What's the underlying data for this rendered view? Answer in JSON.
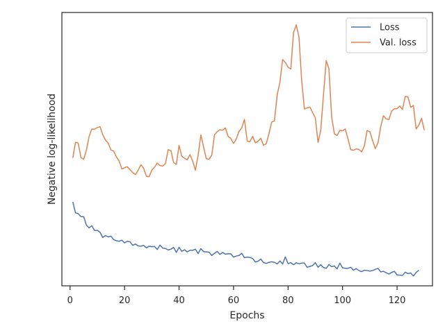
{
  "chart_data": {
    "type": "line",
    "title": "",
    "xlabel": "Epochs",
    "ylabel": "Negative log-likelihood",
    "xlim": [
      -3,
      133
    ],
    "ylim": [
      0,
      100
    ],
    "xticks": [
      0,
      20,
      40,
      60,
      80,
      100,
      120
    ],
    "yticks_shown": false,
    "grid": false,
    "legend_position": "top-right",
    "series": [
      {
        "name": "Loss",
        "color": "#4c72b0",
        "x_start": 1,
        "x_step": 1,
        "values": [
          30.7,
          26.7,
          26.4,
          25.3,
          25.3,
          22.2,
          21.2,
          22.0,
          20.2,
          20.3,
          19.6,
          17.7,
          18.4,
          17.9,
          18.2,
          16.9,
          16.5,
          16.3,
          16.7,
          15.7,
          16.3,
          16.1,
          14.8,
          15.3,
          14.6,
          14.5,
          14.8,
          13.9,
          14.5,
          14.3,
          14.4,
          13.3,
          14.9,
          13.8,
          13.7,
          13.1,
          13.4,
          14.1,
          12.2,
          14.1,
          12.6,
          13.2,
          12.4,
          13.0,
          13.0,
          13.4,
          11.8,
          13.6,
          12.5,
          12.4,
          12.3,
          11.1,
          11.9,
          12.6,
          11.5,
          12.2,
          11.6,
          11.7,
          11.7,
          10.5,
          10.9,
          11.1,
          11.9,
          10.3,
          10.5,
          10.4,
          10.0,
          8.7,
          9.0,
          9.8,
          8.5,
          8.2,
          8.6,
          8.8,
          8.6,
          8.0,
          9.1,
          8.0,
          10.6,
          8.1,
          8.5,
          7.7,
          8.4,
          8.1,
          8.3,
          8.3,
          6.8,
          7.1,
          7.4,
          8.5,
          6.8,
          7.7,
          6.7,
          6.4,
          7.8,
          7.0,
          7.3,
          6.2,
          8.3,
          6.6,
          6.4,
          6.4,
          6.8,
          5.7,
          6.3,
          5.6,
          5.2,
          5.7,
          5.6,
          5.4,
          5.6,
          6.0,
          6.4,
          5.1,
          5.3,
          4.8,
          4.3,
          4.9,
          5.3,
          4.0,
          3.9,
          3.8,
          5.0,
          4.5,
          4.7,
          3.6,
          4.9,
          5.7
        ]
      },
      {
        "name": "Val. loss",
        "color": "#dd8452",
        "x_start": 1,
        "x_step": 1,
        "values": [
          46.8,
          52.5,
          52.2,
          46.9,
          46.3,
          49.6,
          54.7,
          57.4,
          57.3,
          57.9,
          58.2,
          55.3,
          53.3,
          52.2,
          49.7,
          49.3,
          47.2,
          45.7,
          42.8,
          43.2,
          43.6,
          42.5,
          41.4,
          40.7,
          42.3,
          44.3,
          43.0,
          40.1,
          39.9,
          42.3,
          43.4,
          44.9,
          44.0,
          43.8,
          44.7,
          49.8,
          49.5,
          45.1,
          44.4,
          51.4,
          47.4,
          46.7,
          46.1,
          48.0,
          45.6,
          42.3,
          47.8,
          55.2,
          50.8,
          46.5,
          46.3,
          47.8,
          55.2,
          56.4,
          57.1,
          56.9,
          57.8,
          54.7,
          53.9,
          52.1,
          53.7,
          56.5,
          57.8,
          60.9,
          53.0,
          52.7,
          54.7,
          52.3,
          52.9,
          54.0,
          51.4,
          52.0,
          55.7,
          59.9,
          60.4,
          69.8,
          74.4,
          82.8,
          81.7,
          80.0,
          79.3,
          92.6,
          95.5,
          91.1,
          75.1,
          64.7,
          65.1,
          65.4,
          63.4,
          61.5,
          52.5,
          56.9,
          69.8,
          82.4,
          79.4,
          61.8,
          55.6,
          55.0,
          56.9,
          56.7,
          57.4,
          53.7,
          49.8,
          49.6,
          50.1,
          49.9,
          49.0,
          51.2,
          56.8,
          56.4,
          53.2,
          50.2,
          52.3,
          58.2,
          62.2,
          61.1,
          60.8,
          63.9,
          64.8,
          64.8,
          65.8,
          64.5,
          69.3,
          69.1,
          65.3,
          66.0,
          57.4,
          58.8,
          61.3,
          56.9
        ]
      }
    ]
  }
}
